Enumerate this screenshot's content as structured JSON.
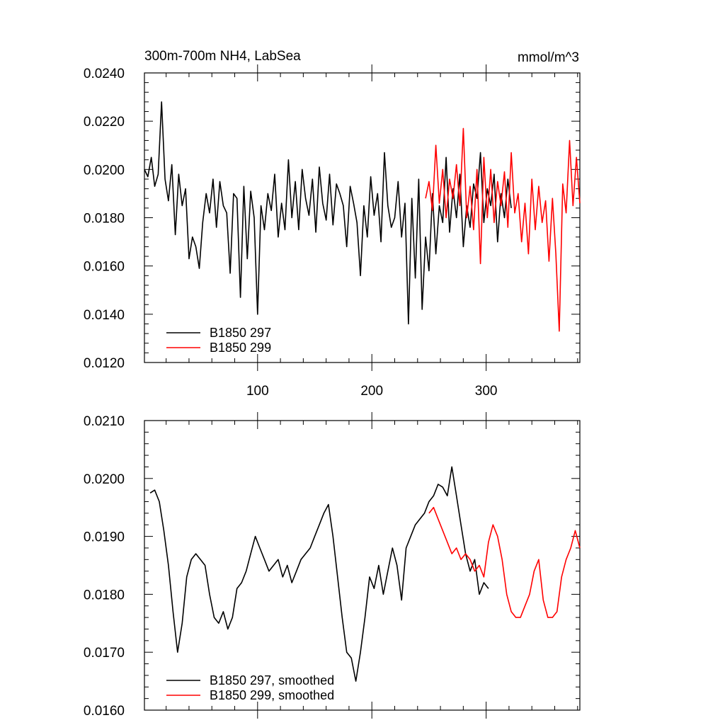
{
  "chart_data": [
    {
      "type": "line",
      "title": "300m-700m NH4, LabSea",
      "units": "mmol/m^3",
      "xlim": [
        1,
        382
      ],
      "ylim": [
        0.012,
        0.024
      ],
      "x_ticks": [
        100,
        200,
        300
      ],
      "y_ticks": [
        "0.0120",
        "0.0140",
        "0.0160",
        "0.0180",
        "0.0200",
        "0.0220",
        "0.0240"
      ],
      "legend": "bottom-left",
      "series": [
        {
          "name": "B1850 297",
          "color": "#000000",
          "x": [
            1,
            4,
            7,
            10,
            13,
            16,
            19,
            22,
            25,
            28,
            31,
            34,
            37,
            40,
            43,
            46,
            49,
            52,
            55,
            58,
            61,
            64,
            67,
            70,
            73,
            76,
            79,
            82,
            85,
            88,
            91,
            94,
            97,
            100,
            103,
            106,
            109,
            112,
            115,
            118,
            121,
            124,
            127,
            130,
            133,
            136,
            139,
            142,
            145,
            148,
            151,
            154,
            157,
            160,
            163,
            166,
            169,
            172,
            175,
            178,
            181,
            184,
            187,
            190,
            193,
            196,
            199,
            202,
            205,
            208,
            211,
            214,
            217,
            220,
            223,
            226,
            229,
            232,
            235,
            238,
            241,
            244,
            247,
            250,
            253,
            256,
            259,
            262,
            265,
            268,
            271,
            274,
            277,
            280,
            283,
            286,
            289,
            292,
            295,
            298,
            301,
            304,
            307,
            310,
            313,
            316,
            319,
            322
          ],
          "y": [
            0.02,
            0.0197,
            0.0205,
            0.0193,
            0.0198,
            0.0228,
            0.0196,
            0.0187,
            0.0202,
            0.0173,
            0.0198,
            0.0185,
            0.0192,
            0.0163,
            0.0172,
            0.0168,
            0.0159,
            0.0178,
            0.019,
            0.0182,
            0.0196,
            0.0176,
            0.0195,
            0.0185,
            0.0182,
            0.0157,
            0.019,
            0.0188,
            0.0147,
            0.0193,
            0.0163,
            0.0191,
            0.018,
            0.014,
            0.0185,
            0.0175,
            0.019,
            0.0183,
            0.0198,
            0.0172,
            0.0186,
            0.0175,
            0.0204,
            0.018,
            0.0195,
            0.0175,
            0.02,
            0.0188,
            0.0181,
            0.0196,
            0.0174,
            0.0201,
            0.0186,
            0.0179,
            0.0198,
            0.0177,
            0.0194,
            0.019,
            0.0185,
            0.0168,
            0.0193,
            0.0186,
            0.0178,
            0.0156,
            0.0185,
            0.0172,
            0.0197,
            0.0181,
            0.019,
            0.017,
            0.0207,
            0.0185,
            0.0176,
            0.018,
            0.0195,
            0.0172,
            0.0186,
            0.0136,
            0.0188,
            0.0155,
            0.0196,
            0.0142,
            0.0172,
            0.0158,
            0.019,
            0.0165,
            0.0185,
            0.0178,
            0.0205,
            0.0174,
            0.0192,
            0.018,
            0.0198,
            0.0168,
            0.0185,
            0.0176,
            0.0194,
            0.0188,
            0.0207,
            0.0178,
            0.0192,
            0.0185,
            0.0198,
            0.017,
            0.019,
            0.018,
            0.0196,
            0.0184
          ]
        },
        {
          "name": "B1850 299",
          "color": "#ff0000",
          "x": [
            247,
            250,
            253,
            256,
            259,
            262,
            265,
            268,
            271,
            274,
            277,
            280,
            283,
            286,
            289,
            292,
            295,
            298,
            301,
            304,
            307,
            310,
            313,
            316,
            319,
            322,
            325,
            328,
            331,
            334,
            337,
            340,
            343,
            346,
            349,
            352,
            355,
            358,
            361,
            364,
            367,
            370,
            373,
            376,
            379,
            382
          ],
          "y": [
            0.0188,
            0.0195,
            0.0183,
            0.021,
            0.0186,
            0.02,
            0.018,
            0.0196,
            0.0188,
            0.0202,
            0.0185,
            0.0217,
            0.018,
            0.0193,
            0.0175,
            0.02,
            0.0161,
            0.0205,
            0.018,
            0.02,
            0.0178,
            0.0195,
            0.0185,
            0.0199,
            0.0176,
            0.0207,
            0.0182,
            0.019,
            0.017,
            0.0186,
            0.0165,
            0.0196,
            0.0175,
            0.0193,
            0.0178,
            0.0187,
            0.0162,
            0.0188,
            0.0165,
            0.0133,
            0.0194,
            0.0182,
            0.0212,
            0.0185,
            0.0205,
            0.0186
          ]
        }
      ]
    },
    {
      "type": "line",
      "xlim": [
        1,
        382
      ],
      "ylim": [
        0.016,
        0.021
      ],
      "y_ticks": [
        "0.0160",
        "0.0170",
        "0.0180",
        "0.0190",
        "0.0200",
        "0.0210"
      ],
      "legend": "bottom-left",
      "series": [
        {
          "name": "B1850 297, smoothed",
          "color": "#000000",
          "x": [
            6,
            10,
            14,
            18,
            22,
            26,
            30,
            34,
            38,
            42,
            46,
            50,
            54,
            58,
            62,
            66,
            70,
            74,
            78,
            82,
            86,
            90,
            94,
            98,
            102,
            106,
            110,
            114,
            118,
            122,
            126,
            130,
            134,
            138,
            142,
            146,
            150,
            154,
            158,
            162,
            166,
            170,
            174,
            178,
            182,
            186,
            190,
            194,
            198,
            202,
            206,
            210,
            214,
            218,
            222,
            226,
            230,
            234,
            238,
            242,
            246,
            250,
            254,
            258,
            262,
            266,
            270,
            274,
            278,
            282,
            286,
            290,
            294,
            298,
            302
          ],
          "y": [
            0.01975,
            0.0198,
            0.0196,
            0.0191,
            0.0185,
            0.0177,
            0.017,
            0.0175,
            0.0183,
            0.0186,
            0.0187,
            0.0186,
            0.0185,
            0.018,
            0.0176,
            0.0175,
            0.0177,
            0.0174,
            0.0176,
            0.0181,
            0.0182,
            0.0184,
            0.0187,
            0.019,
            0.0188,
            0.0186,
            0.0184,
            0.0185,
            0.0186,
            0.0183,
            0.0185,
            0.0182,
            0.0184,
            0.0186,
            0.0187,
            0.0188,
            0.019,
            0.0192,
            0.0194,
            0.01955,
            0.019,
            0.0183,
            0.0176,
            0.017,
            0.0169,
            0.0165,
            0.017,
            0.0176,
            0.0183,
            0.0181,
            0.0185,
            0.018,
            0.0184,
            0.0188,
            0.0185,
            0.0179,
            0.0188,
            0.019,
            0.0192,
            0.0193,
            0.0194,
            0.0196,
            0.0197,
            0.0199,
            0.01985,
            0.0197,
            0.0202,
            0.0197,
            0.0192,
            0.0187,
            0.0184,
            0.0186,
            0.018,
            0.0182,
            0.0181
          ]
        },
        {
          "name": "B1850 299, smoothed",
          "color": "#ff0000",
          "x": [
            250,
            254,
            258,
            262,
            266,
            270,
            274,
            278,
            282,
            286,
            290,
            294,
            298,
            302,
            306,
            310,
            314,
            318,
            322,
            326,
            330,
            334,
            338,
            342,
            346,
            350,
            354,
            358,
            362,
            366,
            370,
            374,
            378,
            382
          ],
          "y": [
            0.0194,
            0.0195,
            0.0193,
            0.0191,
            0.0189,
            0.0187,
            0.0188,
            0.0186,
            0.0187,
            0.0186,
            0.0184,
            0.0185,
            0.0183,
            0.0189,
            0.0192,
            0.019,
            0.0186,
            0.018,
            0.0177,
            0.0176,
            0.0176,
            0.0178,
            0.018,
            0.0184,
            0.0186,
            0.0179,
            0.0176,
            0.0176,
            0.0177,
            0.0183,
            0.0186,
            0.0188,
            0.0191,
            0.0188
          ]
        }
      ]
    }
  ]
}
